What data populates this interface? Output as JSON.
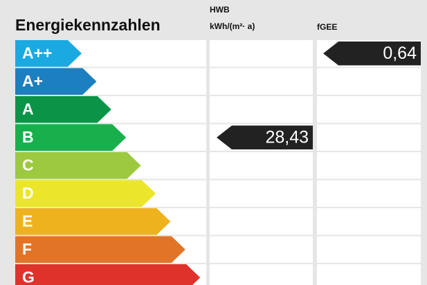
{
  "title": "Energiekennzahlen",
  "hwb_header": [
    "HWB",
    "kWh/(m²· a)"
  ],
  "fgee_header": "fGEE",
  "rows": [
    {
      "class": "A++",
      "color": "#1ba9e1",
      "fgee": "0,64"
    },
    {
      "class": "A+",
      "color": "#1c7fbf"
    },
    {
      "class": "A",
      "color": "#0b9448"
    },
    {
      "class": "B",
      "color": "#18b04c",
      "hwb": "28,43"
    },
    {
      "class": "C",
      "color": "#9cc93f"
    },
    {
      "class": "D",
      "color": "#ebe62b"
    },
    {
      "class": "E",
      "color": "#efb21f"
    },
    {
      "class": "F",
      "color": "#e27428"
    },
    {
      "class": "G",
      "color": "#df322b"
    }
  ]
}
